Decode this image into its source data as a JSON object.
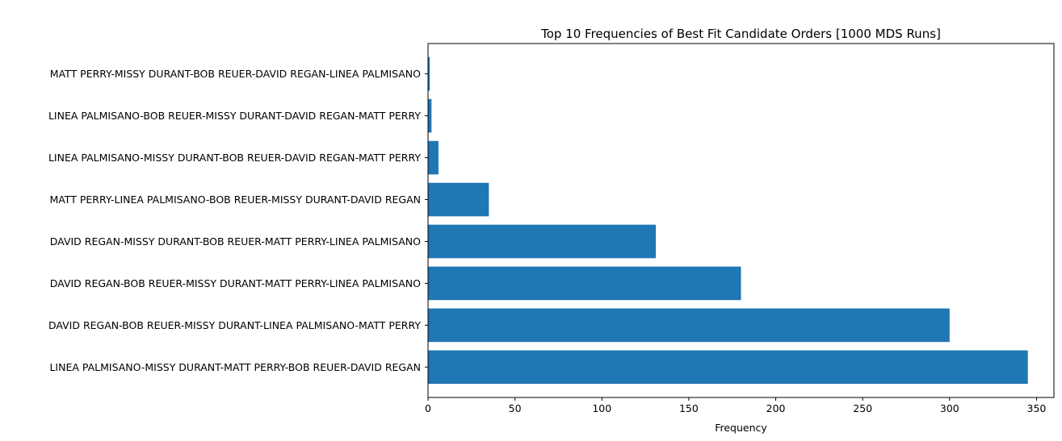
{
  "chart_data": {
    "type": "bar",
    "orientation": "horizontal",
    "title": "Top 10 Frequencies of Best Fit Candidate Orders [1000 MDS Runs]",
    "xlabel": "Frequency",
    "ylabel": "",
    "xlim": [
      0,
      360
    ],
    "x_ticks": [
      0,
      50,
      100,
      150,
      200,
      250,
      300,
      350
    ],
    "grid": false,
    "bar_color": "#1f77b4",
    "categories": [
      "LINEA PALMISANO-MISSY DURANT-MATT PERRY-BOB REUER-DAVID REGAN",
      "DAVID REGAN-BOB REUER-MISSY DURANT-LINEA PALMISANO-MATT PERRY",
      "DAVID REGAN-BOB REUER-MISSY DURANT-MATT PERRY-LINEA PALMISANO",
      "DAVID REGAN-MISSY DURANT-BOB REUER-MATT PERRY-LINEA PALMISANO",
      "MATT PERRY-LINEA PALMISANO-BOB REUER-MISSY DURANT-DAVID REGAN",
      "LINEA PALMISANO-MISSY DURANT-BOB REUER-DAVID REGAN-MATT PERRY",
      "LINEA PALMISANO-BOB REUER-MISSY DURANT-DAVID REGAN-MATT PERRY",
      "MATT PERRY-MISSY DURANT-BOB REUER-DAVID REGAN-LINEA PALMISANO"
    ],
    "values": [
      345,
      300,
      180,
      131,
      35,
      6,
      2,
      1
    ]
  }
}
